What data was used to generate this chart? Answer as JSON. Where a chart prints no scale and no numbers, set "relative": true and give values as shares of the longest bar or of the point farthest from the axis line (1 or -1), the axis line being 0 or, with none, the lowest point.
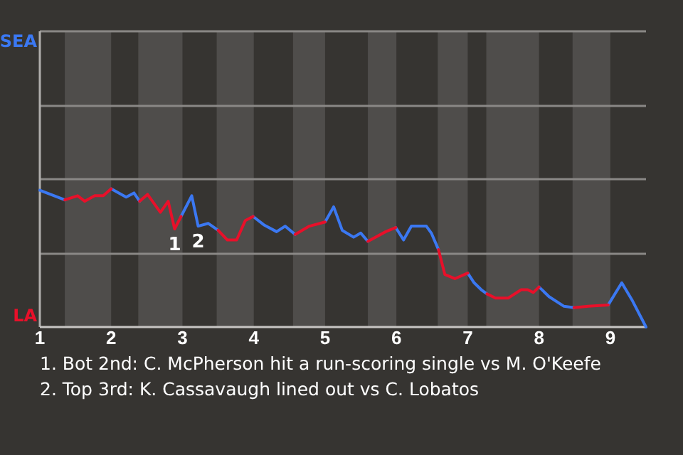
{
  "chart_data": {
    "type": "line",
    "relative": true,
    "x": [
      1.0,
      1.35,
      1.53,
      1.63,
      1.77,
      1.89,
      2.0,
      2.21,
      2.32,
      2.4,
      2.51,
      2.69,
      2.8,
      2.89,
      2.98,
      3.13,
      3.22,
      3.36,
      3.5,
      3.63,
      3.76,
      3.88,
      3.99,
      4.14,
      4.32,
      4.44,
      4.58,
      4.78,
      5.0,
      5.12,
      5.24,
      5.4,
      5.5,
      5.6,
      5.85,
      5.99,
      6.1,
      6.21,
      6.42,
      6.49,
      6.59,
      6.68,
      6.82,
      7.0,
      7.09,
      7.19,
      7.27,
      7.39,
      7.57,
      7.75,
      7.84,
      7.92,
      8.0,
      8.14,
      8.35,
      8.49,
      8.69,
      8.97,
      9.16,
      9.31,
      9.5
    ],
    "series": [
      {
        "color": "#3b78f2",
        "values": [
          0.99,
          0.92,
          null,
          null,
          null,
          null,
          1,
          0.94,
          0.97,
          0.91,
          null,
          null,
          null,
          null,
          0.8,
          0.95,
          0.73,
          0.75,
          0.7,
          null,
          null,
          null,
          0.8,
          0.74,
          0.69,
          0.73,
          0.67,
          null,
          0.76,
          0.87,
          0.7,
          0.65,
          0.68,
          0.62,
          null,
          0.72,
          0.63,
          0.73,
          0.73,
          0.68,
          0.56,
          null,
          null,
          0.39,
          0.32,
          0.27,
          0.24,
          null,
          null,
          null,
          null,
          null,
          0.29,
          0.22,
          0.15,
          0.14,
          null,
          0.16,
          0.32,
          0.19,
          0
        ]
      },
      {
        "color": "#e8102a",
        "values": [
          null,
          0.92,
          0.95,
          0.91,
          0.95,
          0.95,
          1,
          null,
          null,
          0.91,
          0.96,
          0.83,
          0.91,
          0.71,
          0.8,
          null,
          null,
          null,
          0.7,
          0.63,
          0.63,
          0.77,
          0.8,
          null,
          null,
          null,
          0.67,
          0.73,
          0.76,
          null,
          null,
          null,
          null,
          0.62,
          0.69,
          0.72,
          null,
          null,
          null,
          null,
          0.56,
          0.38,
          0.35,
          0.39,
          null,
          null,
          0.24,
          0.21,
          0.21,
          0.27,
          0.27,
          0.25,
          0.29,
          null,
          null,
          0.14,
          0.15,
          0.16,
          null,
          null,
          null
        ]
      }
    ],
    "xlim": [
      1,
      9.5
    ],
    "xticks": [
      1,
      2,
      3,
      4,
      5,
      6,
      7,
      8,
      9
    ],
    "ref_lines": [
      {
        "axis": "y",
        "value": 0.53,
        "color": "#8a8886"
      },
      {
        "axis": "y",
        "value": 1.07,
        "color": "#8a8886"
      },
      {
        "axis": "y",
        "value": 1.6,
        "color": "#8a8886"
      }
    ],
    "bands": [
      {
        "axis": "x",
        "from": 1.35,
        "to": 2.0,
        "color": "#4f4d4b"
      },
      {
        "axis": "x",
        "from": 2.38,
        "to": 3.0,
        "color": "#4f4d4b"
      },
      {
        "axis": "x",
        "from": 3.48,
        "to": 4.0,
        "color": "#4f4d4b"
      },
      {
        "axis": "x",
        "from": 4.55,
        "to": 5.0,
        "color": "#4f4d4b"
      },
      {
        "axis": "x",
        "from": 5.6,
        "to": 6.0,
        "color": "#4f4d4b"
      },
      {
        "axis": "x",
        "from": 6.58,
        "to": 7.0,
        "color": "#4f4d4b"
      },
      {
        "axis": "x",
        "from": 7.26,
        "to": 8.0,
        "color": "#4f4d4b"
      },
      {
        "axis": "x",
        "from": 8.47,
        "to": 9.0,
        "color": "#4f4d4b"
      }
    ],
    "annotations": [
      "SEA",
      "LA",
      {
        "text": "1",
        "x": 2.89,
        "y": 0.71
      },
      {
        "text": "2",
        "x": 3.22,
        "y": 0.73
      },
      "1. Bot 2nd: C. McPherson hit a run-scoring single vs M. O'Keefe",
      "2. Top 3rd: K. Cassavaugh lined out vs C. Lobatos"
    ]
  }
}
